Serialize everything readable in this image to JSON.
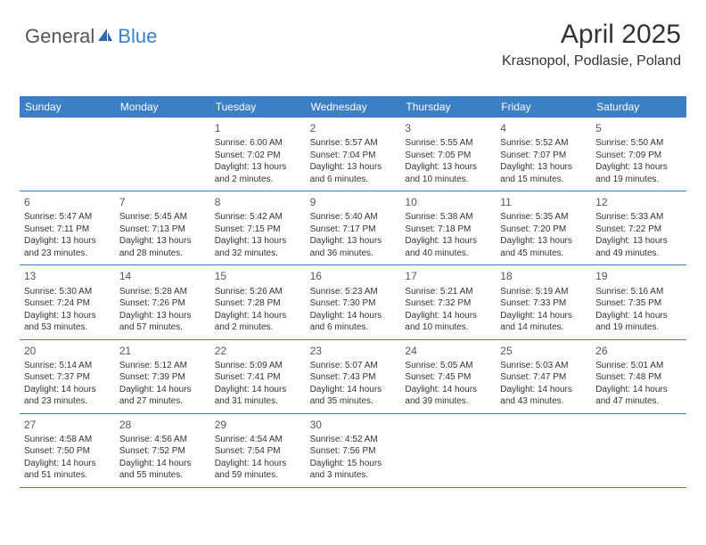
{
  "logo": {
    "part1": "General",
    "part2": "Blue"
  },
  "header": {
    "title": "April 2025",
    "location": "Krasnopol, Podlasie, Poland"
  },
  "colors": {
    "brand": "#3b7fc4",
    "headerText": "#ffffff",
    "bodyText": "#333333",
    "background": "#ffffff"
  },
  "dayNames": [
    "Sunday",
    "Monday",
    "Tuesday",
    "Wednesday",
    "Thursday",
    "Friday",
    "Saturday"
  ],
  "weeks": [
    [
      null,
      null,
      {
        "n": "1",
        "sr": "Sunrise: 6:00 AM",
        "ss": "Sunset: 7:02 PM",
        "d1": "Daylight: 13 hours",
        "d2": "and 2 minutes."
      },
      {
        "n": "2",
        "sr": "Sunrise: 5:57 AM",
        "ss": "Sunset: 7:04 PM",
        "d1": "Daylight: 13 hours",
        "d2": "and 6 minutes."
      },
      {
        "n": "3",
        "sr": "Sunrise: 5:55 AM",
        "ss": "Sunset: 7:05 PM",
        "d1": "Daylight: 13 hours",
        "d2": "and 10 minutes."
      },
      {
        "n": "4",
        "sr": "Sunrise: 5:52 AM",
        "ss": "Sunset: 7:07 PM",
        "d1": "Daylight: 13 hours",
        "d2": "and 15 minutes."
      },
      {
        "n": "5",
        "sr": "Sunrise: 5:50 AM",
        "ss": "Sunset: 7:09 PM",
        "d1": "Daylight: 13 hours",
        "d2": "and 19 minutes."
      }
    ],
    [
      {
        "n": "6",
        "sr": "Sunrise: 5:47 AM",
        "ss": "Sunset: 7:11 PM",
        "d1": "Daylight: 13 hours",
        "d2": "and 23 minutes."
      },
      {
        "n": "7",
        "sr": "Sunrise: 5:45 AM",
        "ss": "Sunset: 7:13 PM",
        "d1": "Daylight: 13 hours",
        "d2": "and 28 minutes."
      },
      {
        "n": "8",
        "sr": "Sunrise: 5:42 AM",
        "ss": "Sunset: 7:15 PM",
        "d1": "Daylight: 13 hours",
        "d2": "and 32 minutes."
      },
      {
        "n": "9",
        "sr": "Sunrise: 5:40 AM",
        "ss": "Sunset: 7:17 PM",
        "d1": "Daylight: 13 hours",
        "d2": "and 36 minutes."
      },
      {
        "n": "10",
        "sr": "Sunrise: 5:38 AM",
        "ss": "Sunset: 7:18 PM",
        "d1": "Daylight: 13 hours",
        "d2": "and 40 minutes."
      },
      {
        "n": "11",
        "sr": "Sunrise: 5:35 AM",
        "ss": "Sunset: 7:20 PM",
        "d1": "Daylight: 13 hours",
        "d2": "and 45 minutes."
      },
      {
        "n": "12",
        "sr": "Sunrise: 5:33 AM",
        "ss": "Sunset: 7:22 PM",
        "d1": "Daylight: 13 hours",
        "d2": "and 49 minutes."
      }
    ],
    [
      {
        "n": "13",
        "sr": "Sunrise: 5:30 AM",
        "ss": "Sunset: 7:24 PM",
        "d1": "Daylight: 13 hours",
        "d2": "and 53 minutes."
      },
      {
        "n": "14",
        "sr": "Sunrise: 5:28 AM",
        "ss": "Sunset: 7:26 PM",
        "d1": "Daylight: 13 hours",
        "d2": "and 57 minutes."
      },
      {
        "n": "15",
        "sr": "Sunrise: 5:26 AM",
        "ss": "Sunset: 7:28 PM",
        "d1": "Daylight: 14 hours",
        "d2": "and 2 minutes."
      },
      {
        "n": "16",
        "sr": "Sunrise: 5:23 AM",
        "ss": "Sunset: 7:30 PM",
        "d1": "Daylight: 14 hours",
        "d2": "and 6 minutes."
      },
      {
        "n": "17",
        "sr": "Sunrise: 5:21 AM",
        "ss": "Sunset: 7:32 PM",
        "d1": "Daylight: 14 hours",
        "d2": "and 10 minutes."
      },
      {
        "n": "18",
        "sr": "Sunrise: 5:19 AM",
        "ss": "Sunset: 7:33 PM",
        "d1": "Daylight: 14 hours",
        "d2": "and 14 minutes."
      },
      {
        "n": "19",
        "sr": "Sunrise: 5:16 AM",
        "ss": "Sunset: 7:35 PM",
        "d1": "Daylight: 14 hours",
        "d2": "and 19 minutes."
      }
    ],
    [
      {
        "n": "20",
        "sr": "Sunrise: 5:14 AM",
        "ss": "Sunset: 7:37 PM",
        "d1": "Daylight: 14 hours",
        "d2": "and 23 minutes."
      },
      {
        "n": "21",
        "sr": "Sunrise: 5:12 AM",
        "ss": "Sunset: 7:39 PM",
        "d1": "Daylight: 14 hours",
        "d2": "and 27 minutes."
      },
      {
        "n": "22",
        "sr": "Sunrise: 5:09 AM",
        "ss": "Sunset: 7:41 PM",
        "d1": "Daylight: 14 hours",
        "d2": "and 31 minutes."
      },
      {
        "n": "23",
        "sr": "Sunrise: 5:07 AM",
        "ss": "Sunset: 7:43 PM",
        "d1": "Daylight: 14 hours",
        "d2": "and 35 minutes."
      },
      {
        "n": "24",
        "sr": "Sunrise: 5:05 AM",
        "ss": "Sunset: 7:45 PM",
        "d1": "Daylight: 14 hours",
        "d2": "and 39 minutes."
      },
      {
        "n": "25",
        "sr": "Sunrise: 5:03 AM",
        "ss": "Sunset: 7:47 PM",
        "d1": "Daylight: 14 hours",
        "d2": "and 43 minutes."
      },
      {
        "n": "26",
        "sr": "Sunrise: 5:01 AM",
        "ss": "Sunset: 7:48 PM",
        "d1": "Daylight: 14 hours",
        "d2": "and 47 minutes."
      }
    ],
    [
      {
        "n": "27",
        "sr": "Sunrise: 4:58 AM",
        "ss": "Sunset: 7:50 PM",
        "d1": "Daylight: 14 hours",
        "d2": "and 51 minutes."
      },
      {
        "n": "28",
        "sr": "Sunrise: 4:56 AM",
        "ss": "Sunset: 7:52 PM",
        "d1": "Daylight: 14 hours",
        "d2": "and 55 minutes."
      },
      {
        "n": "29",
        "sr": "Sunrise: 4:54 AM",
        "ss": "Sunset: 7:54 PM",
        "d1": "Daylight: 14 hours",
        "d2": "and 59 minutes."
      },
      {
        "n": "30",
        "sr": "Sunrise: 4:52 AM",
        "ss": "Sunset: 7:56 PM",
        "d1": "Daylight: 15 hours",
        "d2": "and 3 minutes."
      },
      null,
      null,
      null
    ]
  ]
}
